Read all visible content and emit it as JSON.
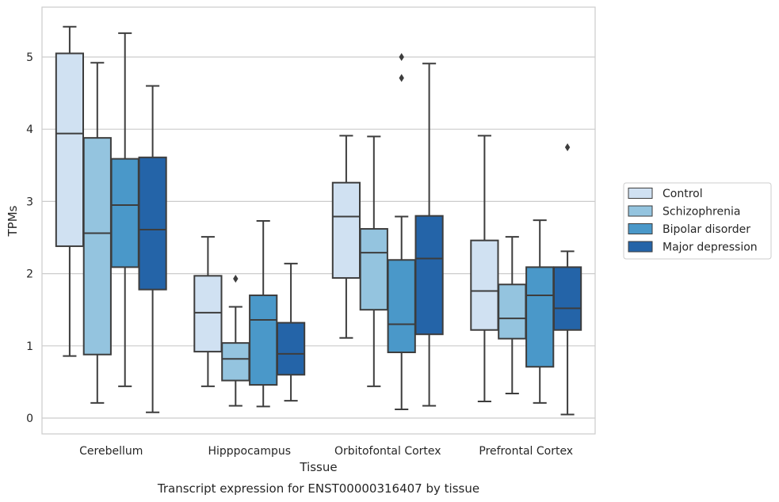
{
  "chart_data": {
    "type": "box",
    "caption": "Transcript expression for ENST00000316407 by tissue",
    "xlabel": "Tissue",
    "ylabel": "TPMs",
    "ylim": [
      -0.22,
      5.7
    ],
    "yticks": [
      0,
      1,
      2,
      3,
      4,
      5
    ],
    "grid": "horizontal",
    "legend_position": "right",
    "categories": [
      "Cerebellum",
      "Hipppocampus",
      "Orbitofontal Cortex",
      "Prefrontal Cortex"
    ],
    "series": [
      {
        "name": "Control",
        "color": "#d0e1f2",
        "boxes": [
          {
            "whisker_low": 0.86,
            "q1": 2.38,
            "median": 3.94,
            "q3": 5.05,
            "whisker_high": 5.42,
            "outliers": []
          },
          {
            "whisker_low": 0.44,
            "q1": 0.92,
            "median": 1.46,
            "q3": 1.97,
            "whisker_high": 2.51,
            "outliers": []
          },
          {
            "whisker_low": 1.11,
            "q1": 1.94,
            "median": 2.79,
            "q3": 3.26,
            "whisker_high": 3.91,
            "outliers": []
          },
          {
            "whisker_low": 0.23,
            "q1": 1.22,
            "median": 1.76,
            "q3": 2.46,
            "whisker_high": 3.91,
            "outliers": []
          }
        ]
      },
      {
        "name": "Schizophrenia",
        "color": "#94c4df",
        "boxes": [
          {
            "whisker_low": 0.21,
            "q1": 0.88,
            "median": 2.56,
            "q3": 3.88,
            "whisker_high": 4.92,
            "outliers": []
          },
          {
            "whisker_low": 0.17,
            "q1": 0.52,
            "median": 0.82,
            "q3": 1.04,
            "whisker_high": 1.54,
            "outliers": [
              1.93
            ]
          },
          {
            "whisker_low": 0.44,
            "q1": 1.5,
            "median": 2.29,
            "q3": 2.62,
            "whisker_high": 3.9,
            "outliers": []
          },
          {
            "whisker_low": 0.34,
            "q1": 1.1,
            "median": 1.38,
            "q3": 1.85,
            "whisker_high": 2.51,
            "outliers": []
          }
        ]
      },
      {
        "name": "Bipolar disorder",
        "color": "#4a98c9",
        "boxes": [
          {
            "whisker_low": 0.44,
            "q1": 2.09,
            "median": 2.95,
            "q3": 3.59,
            "whisker_high": 5.33,
            "outliers": []
          },
          {
            "whisker_low": 0.16,
            "q1": 0.46,
            "median": 1.36,
            "q3": 1.7,
            "whisker_high": 2.73,
            "outliers": []
          },
          {
            "whisker_low": 0.12,
            "q1": 0.91,
            "median": 1.3,
            "q3": 2.19,
            "whisker_high": 2.79,
            "outliers": [
              4.71,
              5.0
            ]
          },
          {
            "whisker_low": 0.21,
            "q1": 0.71,
            "median": 1.7,
            "q3": 2.09,
            "whisker_high": 2.74,
            "outliers": []
          }
        ]
      },
      {
        "name": "Major depression",
        "color": "#2464a8",
        "boxes": [
          {
            "whisker_low": 0.08,
            "q1": 1.78,
            "median": 2.61,
            "q3": 3.61,
            "whisker_high": 4.6,
            "outliers": []
          },
          {
            "whisker_low": 0.24,
            "q1": 0.6,
            "median": 0.89,
            "q3": 1.32,
            "whisker_high": 2.14,
            "outliers": []
          },
          {
            "whisker_low": 0.17,
            "q1": 1.16,
            "median": 2.21,
            "q3": 2.8,
            "whisker_high": 4.91,
            "outliers": []
          },
          {
            "whisker_low": 0.05,
            "q1": 1.22,
            "median": 1.52,
            "q3": 2.09,
            "whisker_high": 2.31,
            "outliers": [
              3.75
            ]
          }
        ]
      }
    ]
  }
}
